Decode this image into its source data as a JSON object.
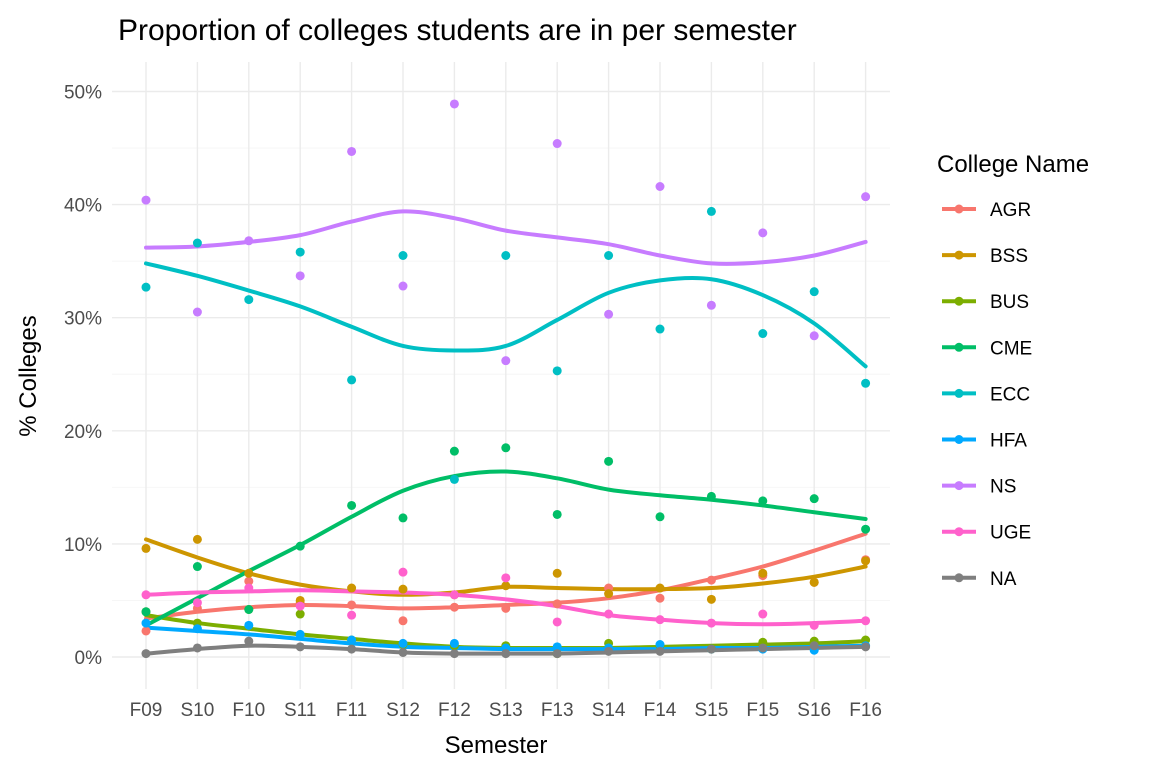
{
  "chart_data": {
    "type": "scatter",
    "title": "Proportion of colleges students are in per semester",
    "xlabel": "Semester",
    "ylabel": "% Colleges",
    "categories": [
      "F09",
      "S10",
      "F10",
      "S11",
      "F11",
      "S12",
      "F12",
      "S13",
      "F13",
      "S14",
      "F14",
      "S15",
      "F15",
      "S16",
      "F16"
    ],
    "ylim": [
      -0.022,
      0.522
    ],
    "yticks": [
      0,
      0.1,
      0.2,
      0.3,
      0.4,
      0.5
    ],
    "ytick_labels": [
      "0%",
      "10%",
      "20%",
      "30%",
      "40%",
      "50%"
    ],
    "grid": true,
    "legend": {
      "title": "College Name",
      "position": "right"
    },
    "series": [
      {
        "name": "AGR",
        "color": "#F8766D",
        "points": [
          0.023,
          0.043,
          0.067,
          0.048,
          0.046,
          0.032,
          0.044,
          0.043,
          0.047,
          0.061,
          0.052,
          0.068,
          0.072,
          0.066,
          0.086
        ],
        "smooth": [
          0.034,
          0.04,
          0.044,
          0.046,
          0.045,
          0.043,
          0.044,
          0.046,
          0.048,
          0.052,
          0.059,
          0.069,
          0.08,
          0.094,
          0.109
        ]
      },
      {
        "name": "BSS",
        "color": "#CD9600",
        "points": [
          0.096,
          0.104,
          0.074,
          0.05,
          0.061,
          0.06,
          0.055,
          0.063,
          0.074,
          0.056,
          0.061,
          0.051,
          0.074,
          0.066,
          0.085
        ],
        "smooth": [
          0.104,
          0.088,
          0.074,
          0.064,
          0.058,
          0.055,
          0.057,
          0.062,
          0.061,
          0.06,
          0.06,
          0.061,
          0.065,
          0.071,
          0.08
        ]
      },
      {
        "name": "BUS",
        "color": "#7CAE00",
        "points": [
          0.04,
          0.03,
          0.042,
          0.038,
          0.015,
          0.011,
          0.01,
          0.01,
          0.003,
          0.012,
          0.01,
          0.007,
          0.013,
          0.014,
          0.015
        ],
        "smooth": [
          0.037,
          0.03,
          0.025,
          0.02,
          0.016,
          0.012,
          0.009,
          0.008,
          0.008,
          0.008,
          0.009,
          0.01,
          0.011,
          0.012,
          0.014
        ]
      },
      {
        "name": "CME",
        "color": "#00BE67",
        "points": [
          0.04,
          0.08,
          0.042,
          0.098,
          0.134,
          0.123,
          0.182,
          0.185,
          0.126,
          0.173,
          0.124,
          0.142,
          0.138,
          0.14,
          0.113
        ],
        "smooth": [
          0.028,
          0.052,
          0.076,
          0.099,
          0.124,
          0.147,
          0.16,
          0.164,
          0.158,
          0.148,
          0.143,
          0.139,
          0.134,
          0.128,
          0.122
        ]
      },
      {
        "name": "ECC",
        "color": "#00BFC4",
        "points": [
          0.327,
          0.366,
          0.316,
          0.358,
          0.245,
          0.355,
          0.157,
          0.355,
          0.253,
          0.355,
          0.29,
          0.394,
          0.286,
          0.323,
          0.242
        ],
        "smooth": [
          0.348,
          0.337,
          0.324,
          0.31,
          0.292,
          0.275,
          0.271,
          0.275,
          0.298,
          0.322,
          0.333,
          0.334,
          0.32,
          0.295,
          0.257
        ]
      },
      {
        "name": "HFA",
        "color": "#00A9FF",
        "points": [
          0.03,
          0.025,
          0.028,
          0.02,
          0.015,
          0.012,
          0.012,
          0.008,
          0.009,
          0.008,
          0.011,
          0.007,
          0.007,
          0.006,
          0.01
        ],
        "smooth": [
          0.026,
          0.023,
          0.02,
          0.016,
          0.012,
          0.009,
          0.008,
          0.007,
          0.007,
          0.007,
          0.007,
          0.008,
          0.008,
          0.009,
          0.01
        ]
      },
      {
        "name": "NS",
        "color": "#C77CFF",
        "points": [
          0.404,
          0.305,
          0.368,
          0.337,
          0.447,
          0.328,
          0.489,
          0.262,
          0.454,
          0.303,
          0.416,
          0.311,
          0.375,
          0.284,
          0.407
        ],
        "smooth": [
          0.362,
          0.363,
          0.367,
          0.373,
          0.385,
          0.394,
          0.388,
          0.377,
          0.371,
          0.365,
          0.355,
          0.348,
          0.349,
          0.355,
          0.367
        ]
      },
      {
        "name": "UGE",
        "color": "#FF61CC",
        "points": [
          0.055,
          0.048,
          0.061,
          0.045,
          0.037,
          0.075,
          0.055,
          0.07,
          0.031,
          0.038,
          0.033,
          0.03,
          0.038,
          0.028,
          0.032
        ],
        "smooth": [
          0.055,
          0.057,
          0.058,
          0.059,
          0.058,
          0.057,
          0.055,
          0.051,
          0.045,
          0.037,
          0.033,
          0.03,
          0.029,
          0.03,
          0.032
        ]
      },
      {
        "name": "NA",
        "color": "#7F7F7F",
        "points": [
          0.003,
          0.008,
          0.014,
          0.009,
          0.007,
          0.004,
          0.003,
          0.003,
          0.003,
          0.005,
          0.005,
          0.007,
          0.008,
          0.01,
          0.009
        ],
        "smooth": [
          0.003,
          0.007,
          0.01,
          0.009,
          0.007,
          0.004,
          0.003,
          0.003,
          0.003,
          0.004,
          0.005,
          0.006,
          0.007,
          0.008,
          0.009
        ]
      }
    ]
  }
}
